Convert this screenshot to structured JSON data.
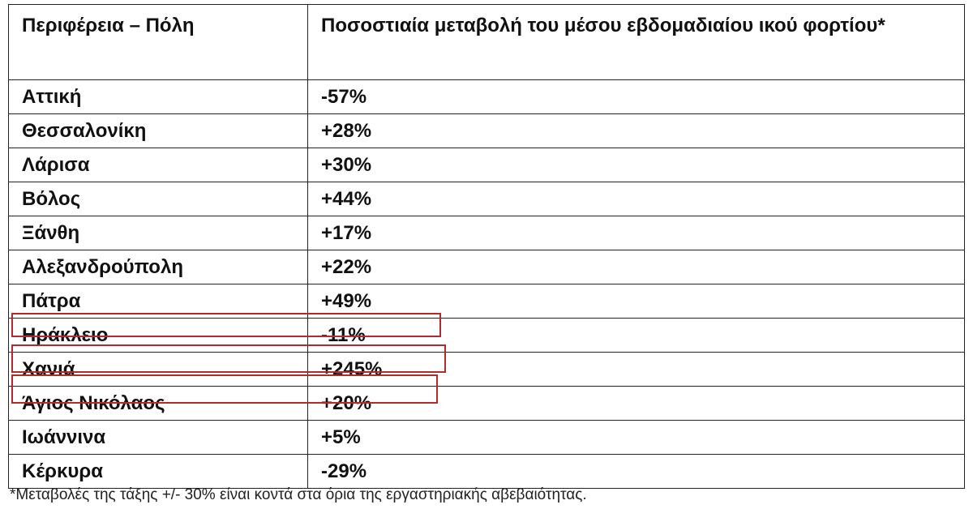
{
  "table": {
    "header": [
      "Περιφέρεια – Πόλη",
      "Ποσοστιαία μεταβολή του μέσου εβδομαδιαίου ικού φορτίου*"
    ],
    "rows": [
      [
        "Αττική",
        "-57%"
      ],
      [
        "Θεσσαλονίκη",
        "+28%"
      ],
      [
        "Λάρισα",
        "+30%"
      ],
      [
        "Βόλος",
        "+44%"
      ],
      [
        "Ξάνθη",
        "+17%"
      ],
      [
        "Αλεξανδρούπολη",
        "+22%"
      ],
      [
        "Πάτρα",
        "+49%"
      ],
      [
        "Ηράκλειο",
        "-11%"
      ],
      [
        "Χανιά",
        "+245%"
      ],
      [
        "Άγιος Νικόλαος",
        "+20%"
      ],
      [
        "Ιωάννινα",
        "+5%"
      ],
      [
        "Κέρκυρα",
        "-29%"
      ]
    ]
  },
  "footnote": "*Μεταβολές της τάξης +/- 30% είναι κοντά στα όρια της εργαστηριακής αβεβαιότητας."
}
